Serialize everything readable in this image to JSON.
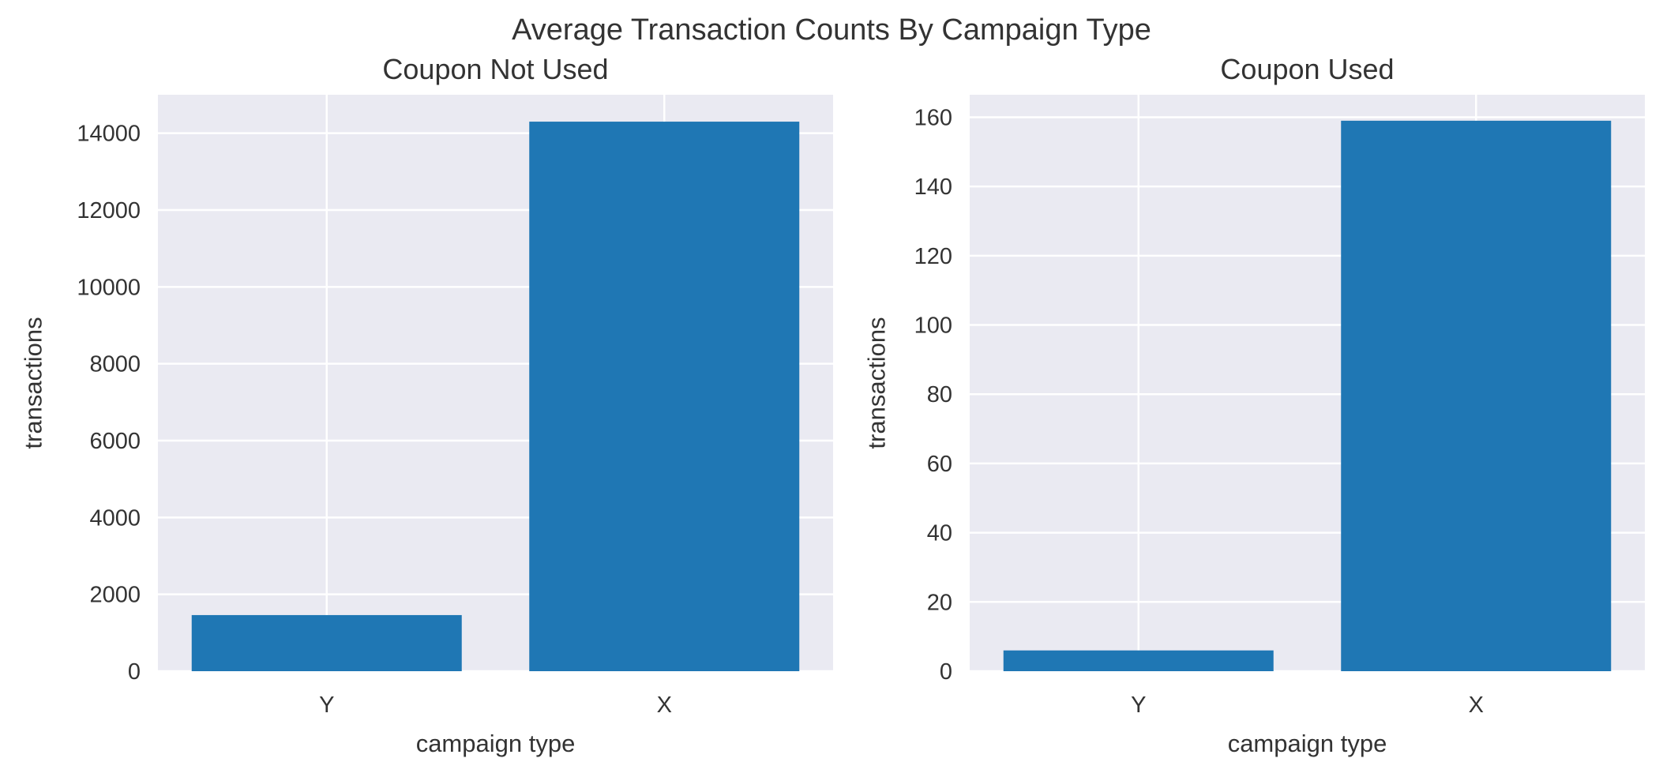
{
  "figure": {
    "title": "Average Transaction Counts By Campaign Type"
  },
  "colors": {
    "bar": "#1f77b4",
    "plot_background": "#eaeaf2",
    "grid": "#ffffff",
    "text": "#333333"
  },
  "chart_data": [
    {
      "type": "bar",
      "title": "Coupon Not Used",
      "xlabel": "campaign type",
      "ylabel": "transactions",
      "categories": [
        "Y",
        "X"
      ],
      "values": [
        1460,
        14300
      ],
      "ylim": [
        0,
        15000
      ],
      "yticks": [
        0,
        2000,
        4000,
        6000,
        8000,
        10000,
        12000,
        14000
      ],
      "ytick_labels": [
        "0",
        "2000",
        "4000",
        "6000",
        "8000",
        "10000",
        "12000",
        "14000"
      ],
      "grid": true,
      "legend": "none"
    },
    {
      "type": "bar",
      "title": "Coupon Used",
      "xlabel": "campaign type",
      "ylabel": "transactions",
      "categories": [
        "Y",
        "X"
      ],
      "values": [
        6,
        159
      ],
      "ylim": [
        0,
        166.5
      ],
      "yticks": [
        0,
        20,
        40,
        60,
        80,
        100,
        120,
        140,
        160
      ],
      "ytick_labels": [
        "0",
        "20",
        "40",
        "60",
        "80",
        "100",
        "120",
        "140",
        "160"
      ],
      "grid": true,
      "legend": "none"
    }
  ]
}
